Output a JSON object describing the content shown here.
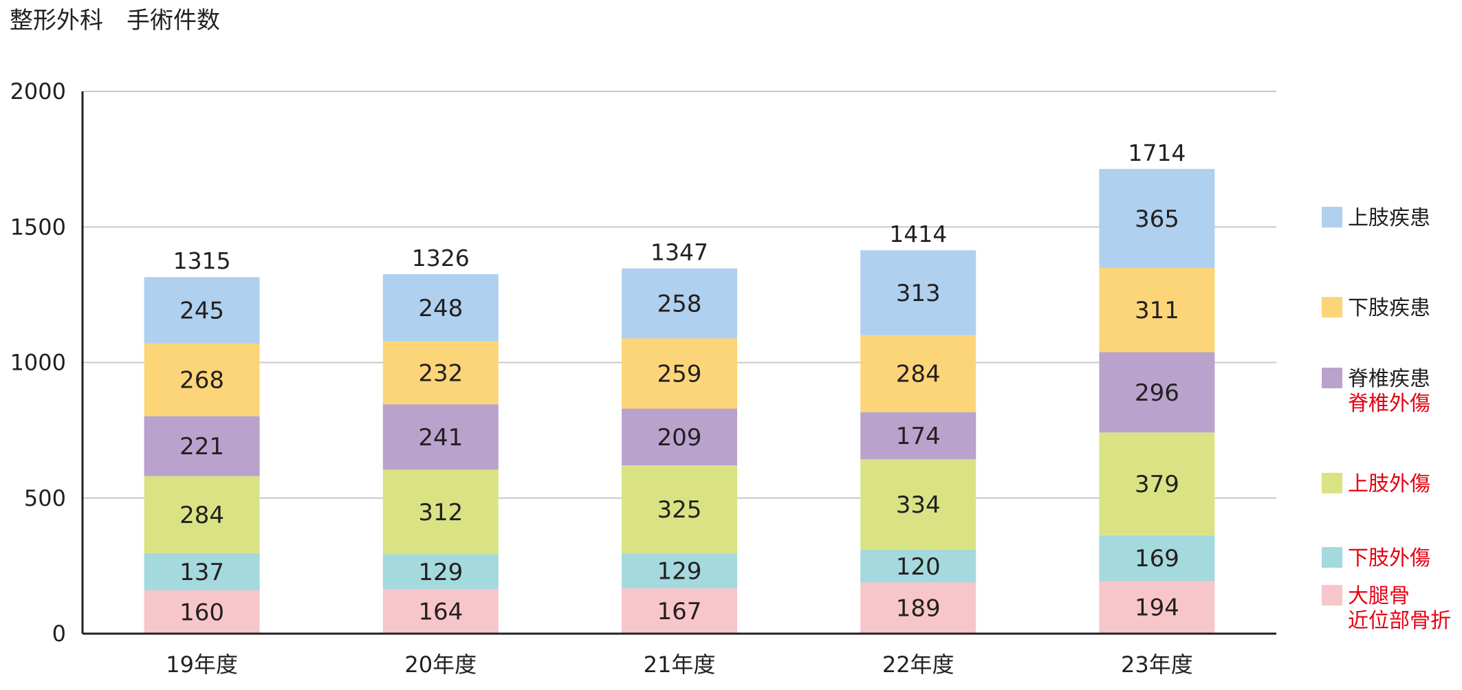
{
  "title": "整形外科　手術件数",
  "chart_data": {
    "type": "bar",
    "stacked": true,
    "categories": [
      "19年度",
      "20年度",
      "21年度",
      "22年度",
      "23年度"
    ],
    "ylim": [
      0,
      2000
    ],
    "yticks": [
      0,
      500,
      1000,
      1500,
      2000
    ],
    "grid": true,
    "legend_position": "right",
    "series": [
      {
        "name": "大腿骨\n近位部骨折",
        "color": "#f7c6cb",
        "legend_text_color": "#e60012",
        "values": [
          160,
          164,
          167,
          189,
          194
        ]
      },
      {
        "name": "下肢外傷",
        "color": "#a4d9dd",
        "legend_text_color": "#e60012",
        "values": [
          137,
          129,
          129,
          120,
          169
        ]
      },
      {
        "name": "上肢外傷",
        "color": "#d9e384",
        "legend_text_color": "#e60012",
        "values": [
          284,
          312,
          325,
          334,
          379
        ]
      },
      {
        "name": "脊椎疾患\n脊椎外傷",
        "color": "#b9a2cc",
        "legend_text_color": "#231f20",
        "legend_text_color_2": "#e60012",
        "values": [
          221,
          241,
          209,
          174,
          296
        ]
      },
      {
        "name": "下肢疾患",
        "color": "#fcd578",
        "legend_text_color": "#231f20",
        "values": [
          268,
          232,
          259,
          284,
          311
        ]
      },
      {
        "name": "上肢疾患",
        "color": "#afd0ee",
        "legend_text_color": "#231f20",
        "values": [
          245,
          248,
          258,
          313,
          365
        ]
      }
    ],
    "totals": [
      1315,
      1326,
      1347,
      1414,
      1714
    ]
  }
}
